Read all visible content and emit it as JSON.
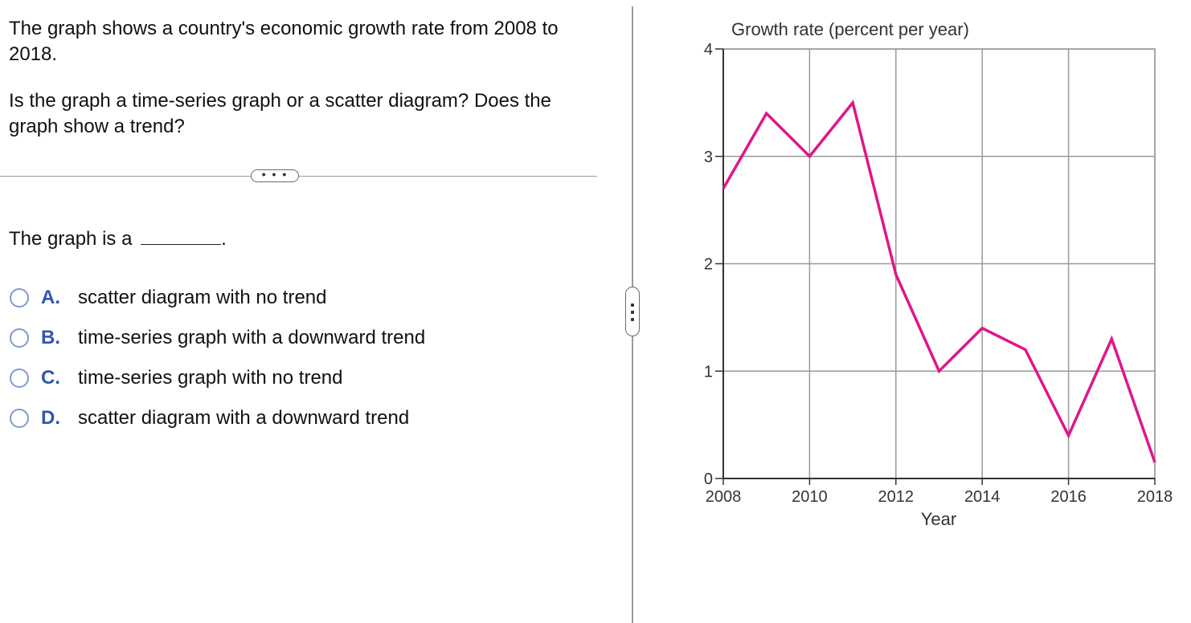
{
  "question": {
    "line1": "The graph shows a country's economic growth rate from 2008 to 2018.",
    "line2": "Is the graph a time-series graph or a scatter diagram? Does the graph show a trend?"
  },
  "separator_label": "• • •",
  "prompt": "The graph is a",
  "prompt_end": ".",
  "options": [
    {
      "letter": "A.",
      "text": "scatter diagram with no trend"
    },
    {
      "letter": "B.",
      "text": "time-series graph with a downward trend"
    },
    {
      "letter": "C.",
      "text": "time-series graph with no trend"
    },
    {
      "letter": "D.",
      "text": "scatter diagram with a downward trend"
    }
  ],
  "chart_data": {
    "type": "line",
    "title": "Growth rate (percent per year)",
    "xlabel": "Year",
    "ylabel": "Growth rate (percent per year)",
    "xlim": [
      2008,
      2018
    ],
    "ylim": [
      0,
      4
    ],
    "x_ticks": [
      2008,
      2010,
      2012,
      2014,
      2016,
      2018
    ],
    "y_ticks": [
      0,
      1,
      2,
      3,
      4
    ],
    "grid": true,
    "line_color": "#e0168a",
    "series": [
      {
        "x": [
          2008,
          2009,
          2010,
          2011,
          2012,
          2013,
          2014,
          2015,
          2016,
          2017,
          2018
        ],
        "values": [
          2.7,
          3.4,
          3.0,
          3.5,
          1.9,
          1.0,
          1.4,
          1.2,
          0.4,
          1.3,
          0.15
        ]
      }
    ]
  }
}
